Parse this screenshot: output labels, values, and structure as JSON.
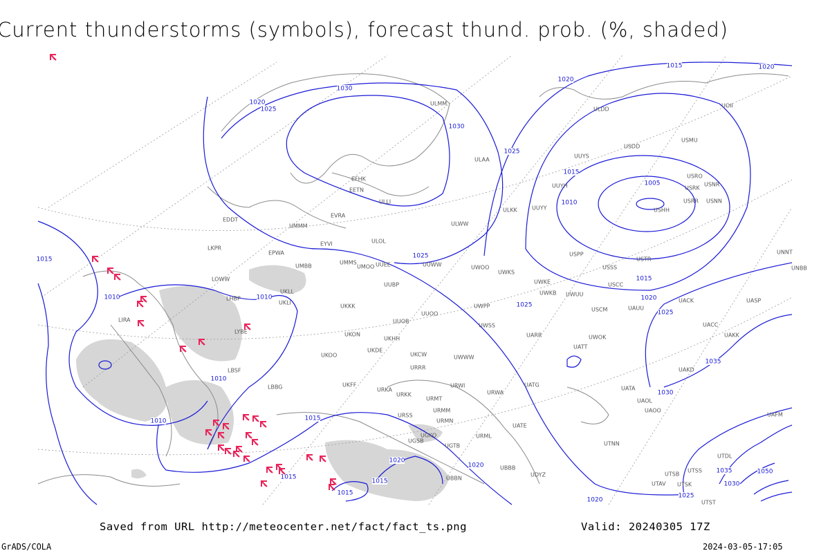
{
  "header": {
    "title": "Current thunderstorms (symbols), forecast thund. prob. (%, shaded)"
  },
  "footer": {
    "saved": "Saved from URL http://meteocenter.net/fact/fact_ts.png",
    "valid": "Valid: 20240305 17Z",
    "software": "GrADS/COLA",
    "timestamp": "2024-03-05-17:05"
  },
  "isobar_labels": [
    "1015",
    "1020",
    "1020",
    "1030",
    "1020",
    "1025",
    "1030",
    "1025",
    "1015",
    "1010",
    "1005",
    "1025",
    "1015",
    "1020",
    "1025",
    "1025",
    "1010",
    "1010",
    "1015",
    "1010",
    "1010",
    "1015",
    "1035",
    "1030",
    "1020",
    "1020",
    "1015",
    "1015",
    "1015",
    "1025",
    "1035",
    "1030",
    "1050",
    "1020"
  ],
  "stations": [
    "EDDT",
    "LKPR",
    "EPWA",
    "UMBB",
    "LOWW",
    "LHBP",
    "UKLL",
    "UKLI",
    "LIRA",
    "LYBE",
    "LBSF",
    "LBBG",
    "UKKK",
    "UMMS",
    "UUEE",
    "ULLI",
    "EFHK",
    "EETN",
    "EVRA",
    "EYVI",
    "UMMM",
    "UMOO",
    "ULOL",
    "UUBP",
    "UUOB",
    "UUOO",
    "UKHH",
    "UKDE",
    "UKON",
    "UKOO",
    "UKCW",
    "URRR",
    "URKA",
    "UKFF",
    "URKK",
    "URSS",
    "UGSB",
    "URMT",
    "URMM",
    "URMN",
    "URWI",
    "URWA",
    "UATG",
    "UATE",
    "UARR",
    "UWWW",
    "UWSS",
    "UWPP",
    "UWOO",
    "UWKS",
    "UWKE",
    "UWKB",
    "UWUU",
    "UUYY",
    "UUYH",
    "UUYS",
    "ULKK",
    "ULWW",
    "UUWW",
    "ULAA",
    "ULMM",
    "ULDD",
    "USDD",
    "USMU",
    "USRO",
    "USRK",
    "USNR",
    "USRR",
    "USNN",
    "USHH",
    "USPP",
    "USSS",
    "USCC",
    "USCM",
    "UAUU",
    "USTR",
    "UACK",
    "UASP",
    "UACC",
    "UAKK",
    "UATT",
    "UWOK",
    "UAKD",
    "UATA",
    "UAOL",
    "UAOO",
    "UAFM",
    "UTNN",
    "UTDL",
    "UTSS",
    "UTSB",
    "UTAV",
    "UTSK",
    "UTST",
    "UNNT",
    "UNBB",
    "UOII",
    "URML",
    "UBBB",
    "UBBN",
    "UGTB",
    "UGKO",
    "UDYZ"
  ]
}
